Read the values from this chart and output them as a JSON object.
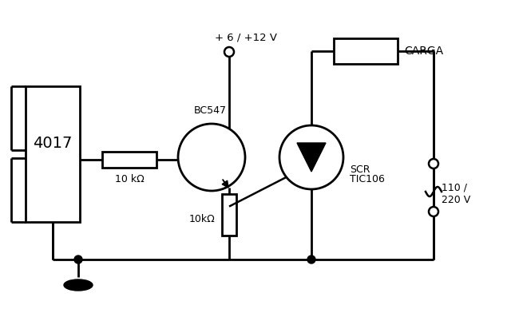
{
  "bg_color": "#ffffff",
  "line_color": "#000000",
  "lw": 2.0,
  "labels": {
    "ic4017": "4017",
    "vcc": "+ 6 / +12 V",
    "bc547": "BC547",
    "r1": "10 kΩ",
    "r2": "10kΩ",
    "scr_label1": "SCR",
    "scr_label2": "TIC106",
    "carga": "CARGA",
    "vac1": "110 /",
    "vac2": "220 V"
  }
}
